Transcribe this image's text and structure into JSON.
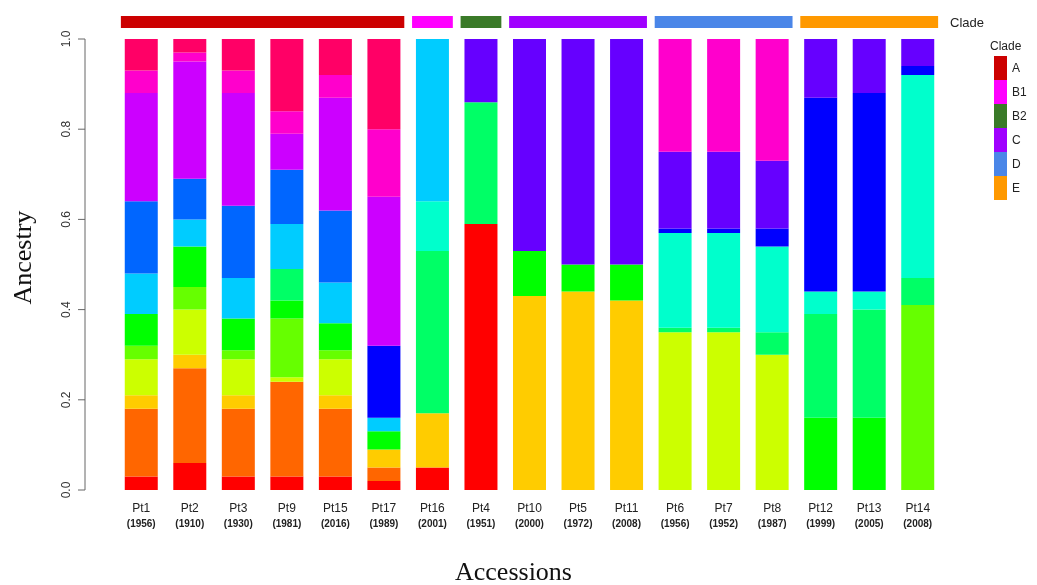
{
  "chart_data": {
    "type": "bar",
    "stacked": true,
    "xlabel": "Accessions",
    "ylabel": "Ancestry",
    "legend_title": "Clade",
    "annotations": [
      "Clade",
      "A",
      "B1",
      "B2",
      "C",
      "D",
      "E"
    ],
    "categories": [
      "Pt1\n(1956)",
      "Pt2\n(1910)",
      "Pt3\n(1930)",
      "Pt9\n(1981)",
      "Pt15\n(2016)",
      "Pt17\n(1989)",
      "Pt16\n(2001)",
      "Pt4\n(1951)",
      "Pt10\n(2000)",
      "Pt5\n(1972)",
      "Pt11\n(2008)",
      "Pt6\n(1956)",
      "Pt7\n(1952)",
      "Pt8\n(1987)",
      "Pt12\n(1999)",
      "Pt13\n(2005)",
      "Pt14\n(2008)"
    ],
    "ylim": [
      0,
      1
    ],
    "yticks": [
      {
        "value": 0,
        "label": "0.0"
      },
      {
        "value": 0.2,
        "label": "0.2"
      },
      {
        "value": 0.4,
        "label": "0.4"
      },
      {
        "value": 0.6,
        "label": "0.6"
      },
      {
        "value": 0.8,
        "label": "0.8"
      },
      {
        "value": 1,
        "label": "1.0"
      }
    ],
    "grid": false,
    "legend": false,
    "series": [
      {
        "color": "#ff0000",
        "values": [
          0.03,
          0.06,
          0.03,
          0.03,
          0.03,
          0.02,
          0.05,
          0.59,
          0,
          0,
          0,
          0,
          0,
          0,
          0,
          0,
          0
        ]
      },
      {
        "color": "#ff6600",
        "values": [
          0.15,
          0.21,
          0.15,
          0.21,
          0.15,
          0.03,
          0,
          0,
          0,
          0,
          0,
          0,
          0,
          0,
          0,
          0,
          0
        ]
      },
      {
        "color": "#ffcc00",
        "values": [
          0.03,
          0.03,
          0.03,
          0,
          0.03,
          0.04,
          0.12,
          0,
          0.43,
          0.44,
          0.42,
          0,
          0,
          0,
          0,
          0,
          0
        ]
      },
      {
        "color": "#ccff00",
        "values": [
          0.08,
          0.1,
          0.08,
          0.01,
          0.08,
          0,
          0,
          0,
          0,
          0,
          0,
          0.35,
          0.35,
          0.3,
          0,
          0,
          0
        ]
      },
      {
        "color": "#66ff00",
        "values": [
          0.03,
          0.05,
          0.02,
          0.13,
          0.02,
          0,
          0,
          0,
          0,
          0,
          0,
          0,
          0,
          0,
          0,
          0,
          0.41
        ]
      },
      {
        "color": "#00ff00",
        "values": [
          0.07,
          0.09,
          0.07,
          0.04,
          0.06,
          0.04,
          0,
          0,
          0.1,
          0.06,
          0.08,
          0,
          0,
          0,
          0.16,
          0.16,
          0
        ]
      },
      {
        "color": "#00ff66",
        "values": [
          0,
          0,
          0,
          0.07,
          0,
          0,
          0.36,
          0.27,
          0,
          0,
          0,
          0.01,
          0.01,
          0.05,
          0.23,
          0.24,
          0.06
        ]
      },
      {
        "color": "#00ffcc",
        "values": [
          0,
          0,
          0,
          0,
          0,
          0,
          0.11,
          0,
          0,
          0,
          0,
          0.21,
          0.21,
          0.19,
          0.05,
          0.04,
          0.45
        ]
      },
      {
        "color": "#00ccff",
        "values": [
          0.09,
          0.06,
          0.09,
          0.1,
          0.09,
          0.03,
          0.36,
          0,
          0,
          0,
          0,
          0,
          0,
          0,
          0,
          0,
          0
        ]
      },
      {
        "color": "#0066ff",
        "values": [
          0.16,
          0.09,
          0.16,
          0.12,
          0.16,
          0,
          0,
          0,
          0,
          0,
          0,
          0,
          0,
          0,
          0,
          0,
          0
        ]
      },
      {
        "color": "#0000ff",
        "values": [
          0,
          0,
          0,
          0,
          0,
          0.16,
          0,
          0,
          0,
          0,
          0,
          0.01,
          0.01,
          0.04,
          0.43,
          0.44,
          0.02
        ]
      },
      {
        "color": "#6600ff",
        "values": [
          0,
          0,
          0,
          0,
          0,
          0,
          0,
          0.14,
          0.47,
          0.5,
          0.5,
          0.17,
          0.17,
          0.15,
          0.13,
          0.12,
          0.06
        ]
      },
      {
        "color": "#cc00ff",
        "values": [
          0.24,
          0.26,
          0.25,
          0.08,
          0.25,
          0.33,
          0,
          0,
          0,
          0,
          0,
          0,
          0,
          0,
          0,
          0,
          0
        ]
      },
      {
        "color": "#ff00cc",
        "values": [
          0.05,
          0.02,
          0.05,
          0.05,
          0.05,
          0.15,
          0,
          0,
          0,
          0,
          0,
          0.25,
          0.25,
          0.27,
          0,
          0,
          0
        ]
      },
      {
        "color": "#ff0066",
        "values": [
          0.07,
          0.03,
          0.07,
          0.16,
          0.08,
          0.2,
          0,
          0,
          0,
          0,
          0,
          0,
          0,
          0,
          0,
          0,
          0
        ]
      }
    ]
  }
}
